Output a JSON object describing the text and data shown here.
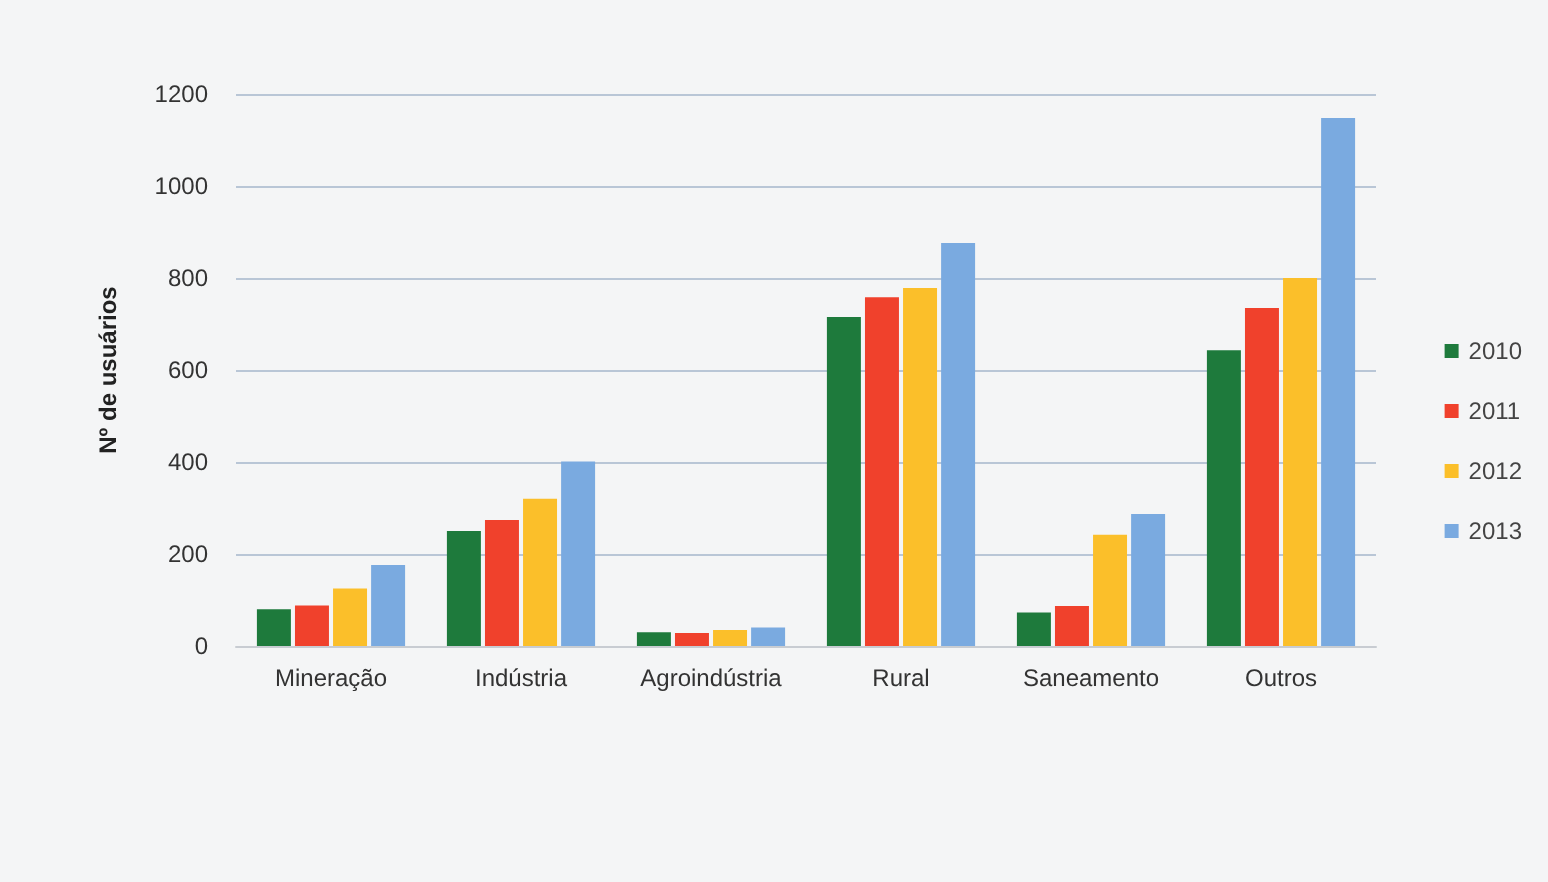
{
  "chart_data": {
    "type": "bar",
    "ylabel": "Nº de usuários",
    "categories": [
      "Mineração",
      "Indústria",
      "Agroindústria",
      "Rural",
      "Saneamento",
      "Outros"
    ],
    "series": [
      {
        "name": "2010",
        "color": "#1e7a3c",
        "values": [
          80,
          250,
          30,
          715,
          73,
          643
        ]
      },
      {
        "name": "2011",
        "color": "#f0412c",
        "values": [
          88,
          274,
          28,
          758,
          87,
          735
        ]
      },
      {
        "name": "2012",
        "color": "#fbbf2a",
        "values": [
          125,
          320,
          35,
          778,
          242,
          800
        ]
      },
      {
        "name": "2013",
        "color": "#7aaae0",
        "values": [
          176,
          401,
          40,
          876,
          287,
          1148
        ]
      }
    ],
    "ylim": [
      0,
      1200
    ],
    "yticks": [
      0,
      200,
      400,
      600,
      800,
      1000,
      1200
    ],
    "grid": "y",
    "legend": "right"
  }
}
